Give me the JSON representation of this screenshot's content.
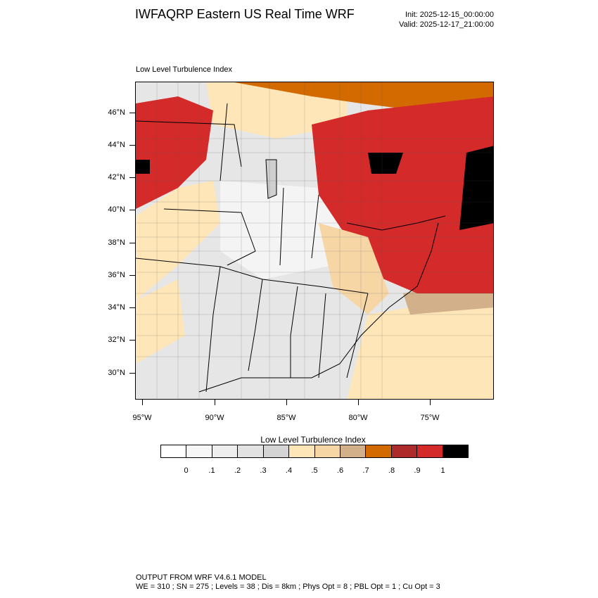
{
  "header": {
    "title": "IWFAQRP Eastern US Real Time WRF",
    "init": "Init: 2025-12-15_00:00:00",
    "valid": "Valid: 2025-12-17_21:00:00"
  },
  "map": {
    "subtitle": "Low Level Turbulence Index",
    "lat_labels": [
      "46°N",
      "44°N",
      "42°N",
      "40°N",
      "38°N",
      "36°N",
      "34°N",
      "32°N",
      "30°N"
    ],
    "lon_labels": [
      "95°W",
      "90°W",
      "85°W",
      "80°W",
      "75°W"
    ],
    "field": "low-level-turbulence-index"
  },
  "colorbar": {
    "title": "Low Level Turbulence Index",
    "colors": [
      "#ffffff",
      "#f7f7f7",
      "#eeeeee",
      "#e2e2e2",
      "#d4d4d4",
      "#ffe6b8",
      "#f7d6a6",
      "#d2b08a",
      "#d26a00",
      "#ad2b2b",
      "#d42a2a",
      "#000000"
    ],
    "labels": [
      "0",
      ".1",
      ".2",
      ".3",
      ".4",
      ".5",
      ".6",
      ".7",
      ".8",
      ".9",
      "1"
    ]
  },
  "footer": {
    "line1": "OUTPUT FROM WRF V4.6.1 MODEL",
    "line2": "WE = 310 ; SN = 275 ; Levels = 38 ; Dis = 8km ; Phys Opt = 8 ; PBL Opt = 1 ; Cu Opt = 3"
  }
}
